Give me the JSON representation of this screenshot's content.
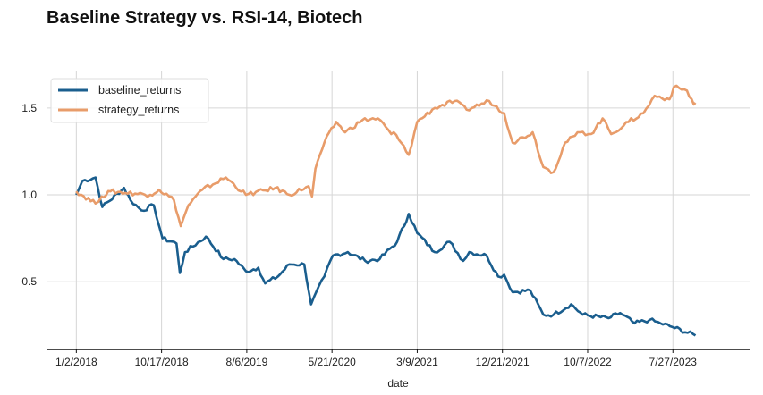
{
  "chart_data": {
    "type": "line",
    "title": "Baseline Strategy vs. RSI-14, Biotech",
    "xlabel": "date",
    "ylabel": "",
    "x_units": "trading-day index",
    "xlim": [
      -70,
      1580
    ],
    "ylim": [
      0.11,
      1.71
    ],
    "grid": true,
    "legend_position": "top-left",
    "x_ticks": [
      {
        "value": 0,
        "label": "1/2/2018"
      },
      {
        "value": 200,
        "label": "10/17/2018"
      },
      {
        "value": 400,
        "label": "8/6/2019"
      },
      {
        "value": 600,
        "label": "5/21/2020"
      },
      {
        "value": 800,
        "label": "3/9/2021"
      },
      {
        "value": 1000,
        "label": "12/21/2021"
      },
      {
        "value": 1200,
        "label": "10/7/2022"
      },
      {
        "value": 1400,
        "label": "7/27/2023"
      }
    ],
    "y_ticks": [
      {
        "value": 0.5,
        "label": "0.5"
      },
      {
        "value": 1.0,
        "label": "1.0"
      },
      {
        "value": 1.5,
        "label": "1.5"
      }
    ],
    "series": [
      {
        "name": "baseline_returns",
        "color": "#1a5e8e",
        "x": [
          0,
          14,
          45,
          61,
          112,
          127,
          153,
          182,
          202,
          235,
          243,
          255,
          304,
          345,
          371,
          398,
          427,
          443,
          473,
          500,
          535,
          551,
          582,
          602,
          637,
          678,
          712,
          753,
          780,
          800,
          841,
          876,
          908,
          922,
          963,
          990,
          1004,
          1024,
          1065,
          1096,
          1120,
          1161,
          1188,
          1249,
          1276,
          1310,
          1345,
          1371,
          1398,
          1453
        ],
        "y": [
          1.0,
          1.08,
          1.1,
          0.93,
          1.04,
          0.97,
          0.91,
          0.94,
          0.75,
          0.72,
          0.55,
          0.67,
          0.76,
          0.63,
          0.63,
          0.56,
          0.58,
          0.49,
          0.53,
          0.6,
          0.6,
          0.37,
          0.53,
          0.65,
          0.67,
          0.62,
          0.63,
          0.73,
          0.89,
          0.78,
          0.67,
          0.73,
          0.62,
          0.67,
          0.65,
          0.53,
          0.54,
          0.44,
          0.45,
          0.31,
          0.31,
          0.37,
          0.31,
          0.29,
          0.32,
          0.26,
          0.28,
          0.26,
          0.24,
          0.19
        ]
      },
      {
        "name": "strategy_returns",
        "color": "#e89c6a",
        "x": [
          0,
          45,
          59,
          80,
          173,
          194,
          229,
          245,
          263,
          296,
          351,
          398,
          467,
          500,
          545,
          553,
          561,
          582,
          610,
          631,
          671,
          708,
          739,
          745,
          780,
          800,
          841,
          888,
          916,
          969,
          1004,
          1024,
          1071,
          1096,
          1120,
          1147,
          1182,
          1208,
          1235,
          1255,
          1296,
          1331,
          1357,
          1392,
          1402,
          1433,
          1449,
          1453
        ],
        "y": [
          1.02,
          0.95,
          0.99,
          1.02,
          1.0,
          1.03,
          0.97,
          0.82,
          0.94,
          1.03,
          1.1,
          1.0,
          1.04,
          1.0,
          1.05,
          0.99,
          1.15,
          1.3,
          1.42,
          1.36,
          1.43,
          1.44,
          1.35,
          1.36,
          1.23,
          1.42,
          1.5,
          1.54,
          1.49,
          1.54,
          1.47,
          1.3,
          1.36,
          1.16,
          1.13,
          1.3,
          1.36,
          1.35,
          1.44,
          1.35,
          1.42,
          1.47,
          1.57,
          1.55,
          1.62,
          1.6,
          1.52,
          1.53
        ]
      }
    ]
  }
}
